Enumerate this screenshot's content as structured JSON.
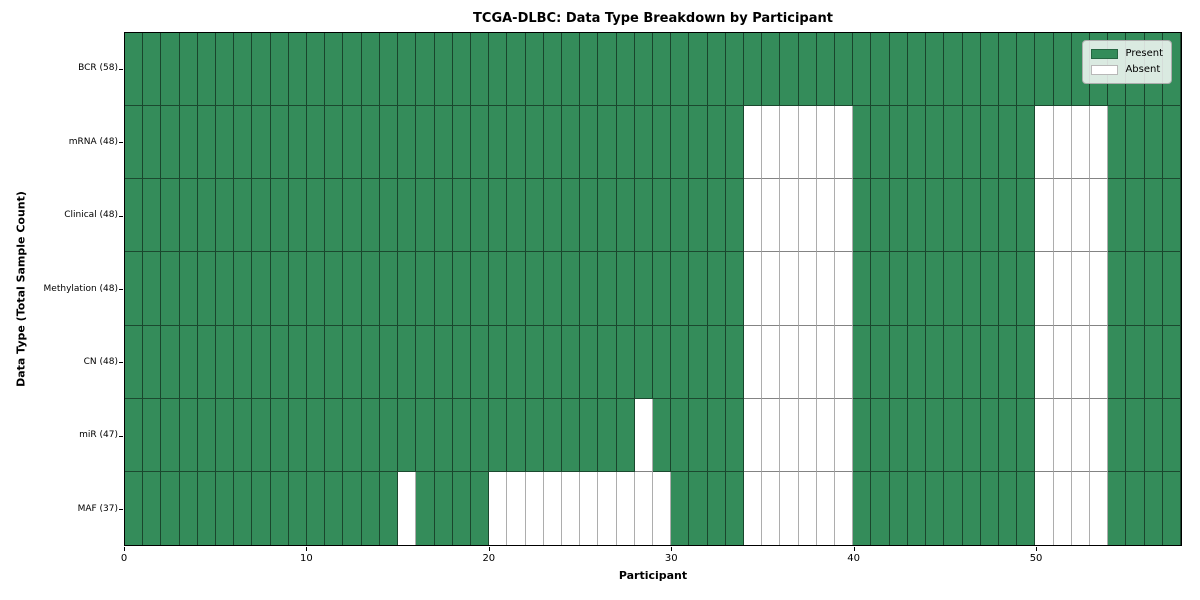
{
  "chart_data": {
    "type": "heatmap",
    "title": "TCGA-DLBC: Data Type Breakdown by Participant",
    "xlabel": "Participant",
    "ylabel": "Data Type (Total Sample Count)",
    "n_participants": 58,
    "x_range": [
      0,
      58
    ],
    "x_ticks": [
      0,
      10,
      20,
      30,
      40,
      50
    ],
    "grid": true,
    "legend_position": "upper right",
    "present_color": "#348c5a",
    "absent_color": "#ffffff",
    "legend": [
      {
        "label": "Present",
        "color": "#348c5a"
      },
      {
        "label": "Absent",
        "color": "#ffffff"
      }
    ],
    "rows": [
      {
        "label": "BCR (58)",
        "total": 58,
        "absent": []
      },
      {
        "label": "mRNA (48)",
        "total": 48,
        "absent": [
          34,
          35,
          36,
          37,
          38,
          39,
          50,
          51,
          52,
          53
        ]
      },
      {
        "label": "Clinical (48)",
        "total": 48,
        "absent": [
          34,
          35,
          36,
          37,
          38,
          39,
          50,
          51,
          52,
          53
        ]
      },
      {
        "label": "Methylation (48)",
        "total": 48,
        "absent": [
          34,
          35,
          36,
          37,
          38,
          39,
          50,
          51,
          52,
          53
        ]
      },
      {
        "label": "CN (48)",
        "total": 48,
        "absent": [
          34,
          35,
          36,
          37,
          38,
          39,
          50,
          51,
          52,
          53
        ]
      },
      {
        "label": "miR (47)",
        "total": 47,
        "absent": [
          28,
          34,
          35,
          36,
          37,
          38,
          39,
          50,
          51,
          52,
          53
        ]
      },
      {
        "label": "MAF (37)",
        "total": 37,
        "absent": [
          15,
          20,
          21,
          22,
          23,
          24,
          25,
          26,
          27,
          28,
          29,
          34,
          35,
          36,
          37,
          38,
          39,
          50,
          51,
          52,
          53
        ]
      }
    ]
  }
}
